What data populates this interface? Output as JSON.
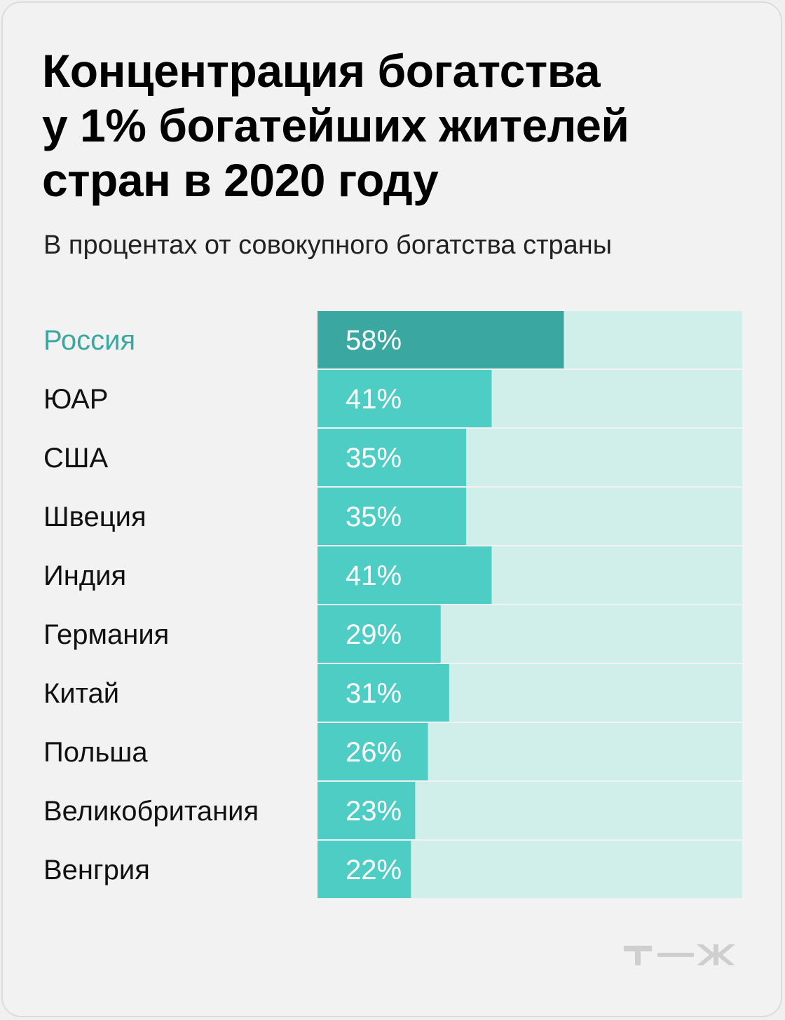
{
  "header": {
    "title_lines": [
      "Концентрация богатства",
      "у 1% богатейших жителей",
      "стран в 2020 году"
    ],
    "subtitle": "В процентах от совокупного богатства страны"
  },
  "logo": {
    "text": "т—ж",
    "icon": "tzh-logo-icon",
    "color": "#cfcfcf"
  },
  "colors": {
    "highlight_label": "#3aa8a0",
    "highlight_bar": "#3aa8a0",
    "bar": "#4ecdc4",
    "track": "#d0eeea",
    "label": "#111111",
    "value_text": "#ffffff"
  },
  "chart_data": {
    "type": "bar",
    "orientation": "horizontal",
    "title": "Концентрация богатства у 1% богатейших жителей стран в 2020 году",
    "subtitle": "В процентах от совокупного богатства страны",
    "xlim": [
      0,
      100
    ],
    "grid": false,
    "highlight": "Россия",
    "categories": [
      "Россия",
      "ЮАР",
      "США",
      "Швеция",
      "Индия",
      "Германия",
      "Китай",
      "Польша",
      "Великобритания",
      "Венгрия"
    ],
    "values": [
      58,
      41,
      35,
      35,
      41,
      29,
      31,
      26,
      23,
      22
    ],
    "value_labels": [
      "58%",
      "41%",
      "35%",
      "35%",
      "41%",
      "29%",
      "31%",
      "26%",
      "23%",
      "22%"
    ]
  }
}
